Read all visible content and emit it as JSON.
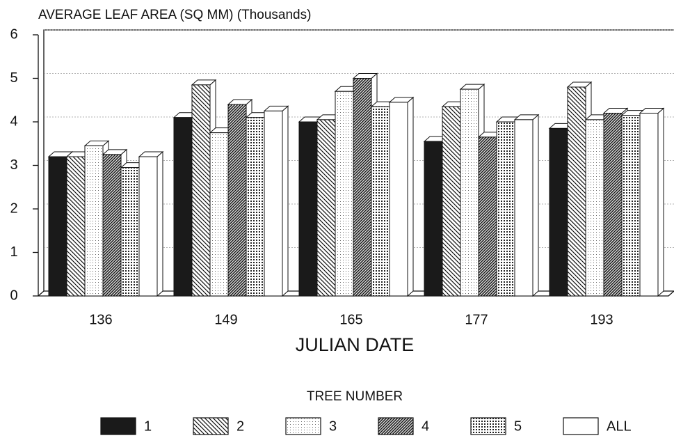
{
  "chart_data": {
    "type": "bar3d",
    "title": "AVERAGE LEAF AREA (SQ MM) (Thousands)",
    "x_label": "JULIAN DATE",
    "legend_title": "TREE NUMBER",
    "categories": [
      "136",
      "149",
      "165",
      "177",
      "193"
    ],
    "series": [
      {
        "name": "1",
        "color": "#1a1a1a",
        "pattern": "solid",
        "values": [
          3.2,
          4.1,
          4.0,
          3.55,
          3.85
        ]
      },
      {
        "name": "2",
        "color": "#ffffff",
        "pattern": "diagonal-back",
        "values": [
          3.2,
          4.85,
          4.05,
          4.35,
          4.8
        ]
      },
      {
        "name": "3",
        "color": "#ffffff",
        "pattern": "dots-light",
        "values": [
          3.45,
          3.75,
          4.7,
          4.75,
          4.05
        ]
      },
      {
        "name": "4",
        "color": "#ffffff",
        "pattern": "diagonal-dense",
        "values": [
          3.25,
          4.4,
          5.0,
          3.65,
          4.2
        ]
      },
      {
        "name": "5",
        "color": "#ffffff",
        "pattern": "dots-grid",
        "values": [
          2.95,
          4.1,
          4.35,
          4.0,
          4.15
        ]
      },
      {
        "name": "ALL",
        "color": "#ffffff",
        "pattern": "none",
        "values": [
          3.2,
          4.25,
          4.45,
          4.05,
          4.2
        ]
      }
    ],
    "ylim": [
      0,
      6
    ],
    "yticks": [
      0,
      1,
      2,
      3,
      4,
      5,
      6
    ],
    "grid": true
  }
}
